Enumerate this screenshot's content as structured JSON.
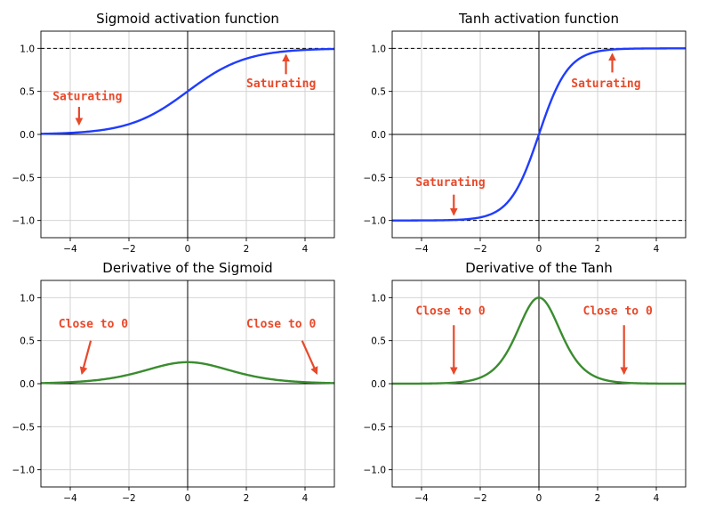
{
  "chart_data": [
    {
      "type": "line",
      "title": "Sigmoid activation function",
      "xlim": [
        -5,
        5
      ],
      "ylim": [
        -1.2,
        1.2
      ],
      "xticks": [
        -4,
        -2,
        0,
        2,
        4
      ],
      "yticks": [
        -1.0,
        -0.5,
        0.0,
        0.5,
        1.0
      ],
      "xtick_labels": [
        "−4",
        "−2",
        "0",
        "2",
        "4"
      ],
      "ytick_labels": [
        "−1.0",
        "−0.5",
        "0.0",
        "0.5",
        "1.0"
      ],
      "grid": true,
      "series": [
        {
          "function": "sigmoid",
          "color": "#1f3cff",
          "x": [
            -5,
            -4,
            -3,
            -2,
            -1,
            0,
            1,
            2,
            3,
            4,
            5
          ],
          "y": [
            0.007,
            0.018,
            0.047,
            0.119,
            0.269,
            0.5,
            0.731,
            0.881,
            0.953,
            0.982,
            0.993
          ]
        }
      ],
      "reference_lines": [
        1.0
      ],
      "annotations": [
        {
          "text": "Saturating",
          "text_x": -4.6,
          "text_y": 0.4,
          "arrow_from": [
            -3.7,
            0.32
          ],
          "arrow_to": [
            -3.7,
            0.12
          ]
        },
        {
          "text": "Saturating",
          "text_x": 2.0,
          "text_y": 0.55,
          "arrow_from": [
            3.35,
            0.7
          ],
          "arrow_to": [
            3.35,
            0.92
          ]
        }
      ]
    },
    {
      "type": "line",
      "title": "Tanh activation function",
      "xlim": [
        -5,
        5
      ],
      "ylim": [
        -1.2,
        1.2
      ],
      "xticks": [
        -4,
        -2,
        0,
        2,
        4
      ],
      "yticks": [
        -1.0,
        -0.5,
        0.0,
        0.5,
        1.0
      ],
      "xtick_labels": [
        "−4",
        "−2",
        "0",
        "2",
        "4"
      ],
      "ytick_labels": [
        "−1.0",
        "−0.5",
        "0.0",
        "0.5",
        "1.0"
      ],
      "grid": true,
      "series": [
        {
          "function": "tanh",
          "color": "#1f3cff",
          "x": [
            -5,
            -4,
            -3,
            -2,
            -1,
            0,
            1,
            2,
            3,
            4,
            5
          ],
          "y": [
            -1.0,
            -0.999,
            -0.995,
            -0.964,
            -0.762,
            0.0,
            0.762,
            0.964,
            0.995,
            0.999,
            1.0
          ]
        }
      ],
      "reference_lines": [
        1.0,
        -1.0
      ],
      "annotations": [
        {
          "text": "Saturating",
          "text_x": 1.1,
          "text_y": 0.55,
          "arrow_from": [
            2.5,
            0.72
          ],
          "arrow_to": [
            2.5,
            0.93
          ]
        },
        {
          "text": "Saturating",
          "text_x": -4.2,
          "text_y": -0.6,
          "arrow_from": [
            -2.9,
            -0.7
          ],
          "arrow_to": [
            -2.9,
            -0.93
          ]
        }
      ]
    },
    {
      "type": "line",
      "title": "Derivative of the Sigmoid",
      "xlim": [
        -5,
        5
      ],
      "ylim": [
        -1.2,
        1.2
      ],
      "xticks": [
        -4,
        -2,
        0,
        2,
        4
      ],
      "yticks": [
        -1.0,
        -0.5,
        0.0,
        0.5,
        1.0
      ],
      "xtick_labels": [
        "−4",
        "−2",
        "0",
        "2",
        "4"
      ],
      "ytick_labels": [
        "−1.0",
        "−0.5",
        "0.0",
        "0.5",
        "1.0"
      ],
      "grid": true,
      "series": [
        {
          "function": "sigmoid_derivative",
          "color": "#3a8c2f",
          "x": [
            -5,
            -4,
            -3,
            -2,
            -1,
            0,
            1,
            2,
            3,
            4,
            5
          ],
          "y": [
            0.007,
            0.018,
            0.045,
            0.105,
            0.197,
            0.25,
            0.197,
            0.105,
            0.045,
            0.018,
            0.007
          ]
        }
      ],
      "reference_lines": [],
      "annotations": [
        {
          "text": "Close to 0",
          "text_x": -4.4,
          "text_y": 0.65,
          "arrow_from": [
            -3.3,
            0.5
          ],
          "arrow_to": [
            -3.6,
            0.12
          ]
        },
        {
          "text": "Close to 0",
          "text_x": 2.0,
          "text_y": 0.65,
          "arrow_from": [
            3.9,
            0.5
          ],
          "arrow_to": [
            4.4,
            0.12
          ]
        }
      ]
    },
    {
      "type": "line",
      "title": "Derivative of the Tanh",
      "xlim": [
        -5,
        5
      ],
      "ylim": [
        -1.2,
        1.2
      ],
      "xticks": [
        -4,
        -2,
        0,
        2,
        4
      ],
      "yticks": [
        -1.0,
        -0.5,
        0.0,
        0.5,
        1.0
      ],
      "xtick_labels": [
        "−4",
        "−2",
        "0",
        "2",
        "4"
      ],
      "ytick_labels": [
        "−1.0",
        "−0.5",
        "0.0",
        "0.5",
        "1.0"
      ],
      "grid": true,
      "series": [
        {
          "function": "tanh_derivative",
          "color": "#3a8c2f",
          "x": [
            -5,
            -4,
            -3,
            -2,
            -1,
            0,
            1,
            2,
            3,
            4,
            5
          ],
          "y": [
            0.0002,
            0.0013,
            0.0099,
            0.071,
            0.42,
            1.0,
            0.42,
            0.071,
            0.0099,
            0.0013,
            0.0002
          ]
        }
      ],
      "reference_lines": [],
      "annotations": [
        {
          "text": "Close to 0",
          "text_x": -4.2,
          "text_y": 0.8,
          "arrow_from": [
            -2.9,
            0.68
          ],
          "arrow_to": [
            -2.9,
            0.12
          ]
        },
        {
          "text": "Close to 0",
          "text_x": 1.5,
          "text_y": 0.8,
          "arrow_from": [
            2.9,
            0.68
          ],
          "arrow_to": [
            2.9,
            0.12
          ]
        }
      ]
    }
  ]
}
